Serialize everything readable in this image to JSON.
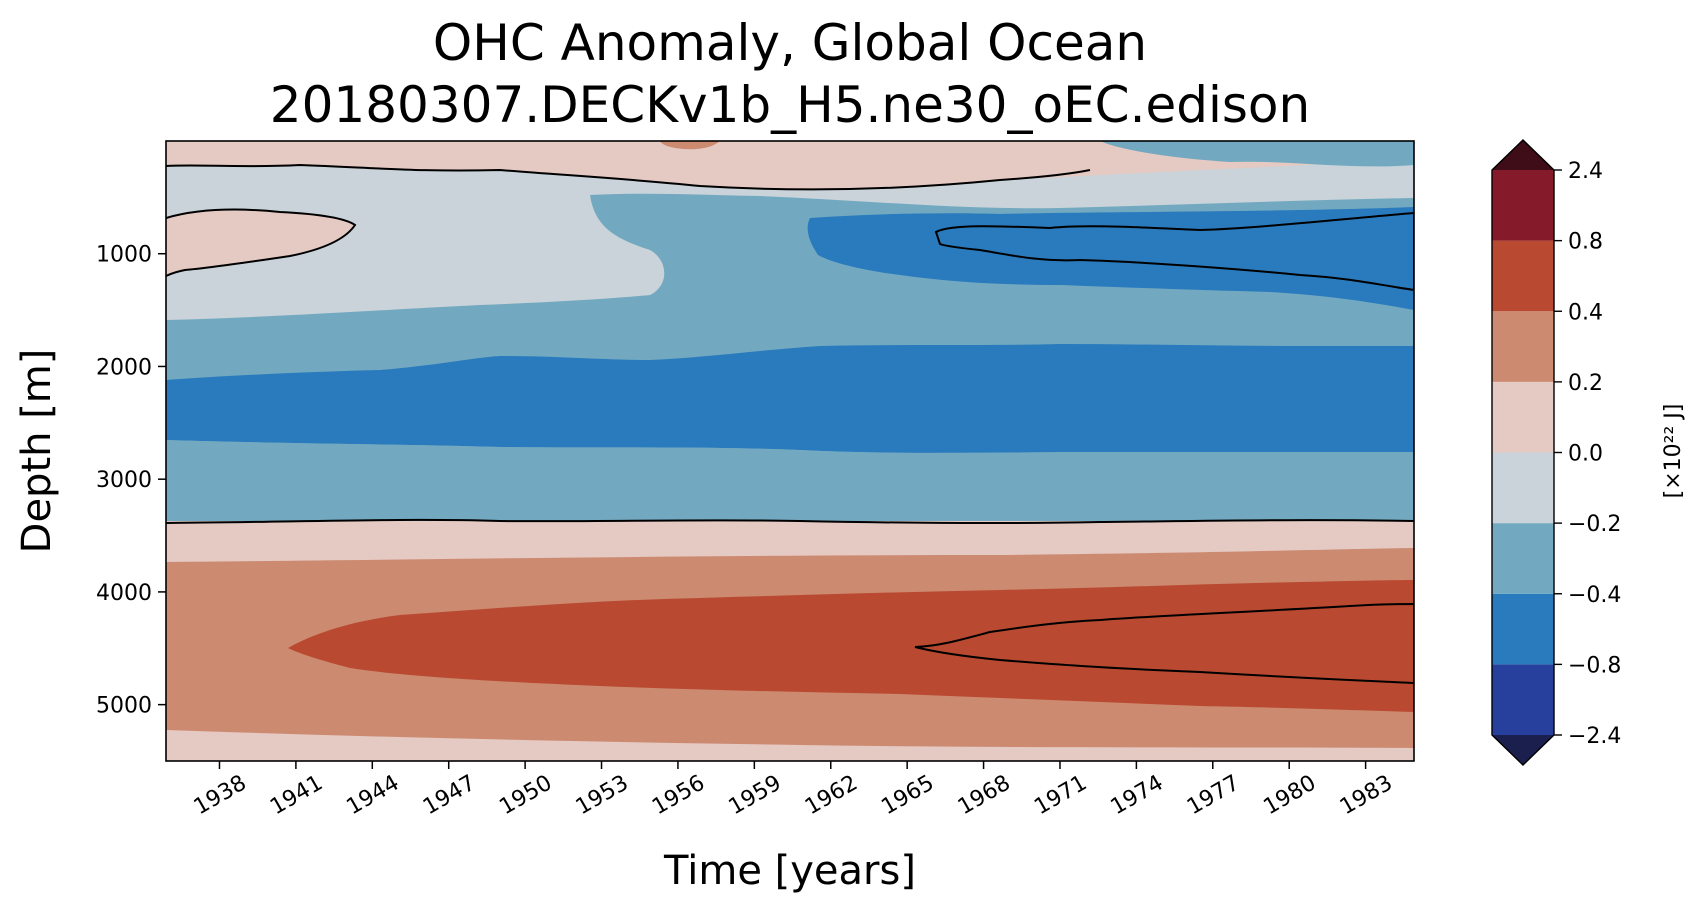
{
  "chart_data": {
    "type": "heatmap",
    "subtype": "filled-contour (Hovmoller)",
    "title": "OHC Anomaly, Global Ocean",
    "subtitle": "20180307.DECKv1b_H5.ne30_oEC.edison",
    "xlabel": "Time [years]",
    "ylabel": "Depth [m]",
    "xlim": [
      1935.9,
      1984.9
    ],
    "ylim": [
      5500,
      0
    ],
    "x_ticks": [
      1938,
      1941,
      1944,
      1947,
      1950,
      1953,
      1956,
      1959,
      1962,
      1965,
      1968,
      1971,
      1974,
      1977,
      1980,
      1983
    ],
    "x_tick_labels": [
      "1938",
      "1941",
      "1944",
      "1947",
      "1950",
      "1953",
      "1956",
      "1959",
      "1962",
      "1965",
      "1968",
      "1971",
      "1974",
      "1977",
      "1980",
      "1983"
    ],
    "y_ticks": [
      1000,
      2000,
      3000,
      4000,
      5000
    ],
    "y_tick_labels": [
      "1000",
      "2000",
      "3000",
      "4000",
      "5000"
    ],
    "colorbar": {
      "label": "[×10²² J]",
      "levels": [
        "−2.4",
        "−0.8",
        "−0.4",
        "−0.2",
        "0.0",
        "0.2",
        "0.4",
        "0.8",
        "2.4"
      ],
      "colors": [
        "#27409e",
        "#2a7bbd",
        "#73a9c0",
        "#c9d3d9",
        "#e5c9c3",
        "#cc8a71",
        "#b94a31",
        "#841a2a"
      ],
      "under_color": "#1a1f4d",
      "over_color": "#3e0d18",
      "extend": "both"
    },
    "bands": [
      {
        "level": "0.0 to 0.2",
        "description": "surface layer 0-400 m with patches"
      },
      {
        "level": "-0.2 to 0.0",
        "description": "upper ocean 0-1500 m"
      },
      {
        "level": "-0.4 to -0.2",
        "description": "1500-2100 m and 2500-3000 m"
      },
      {
        "level": "-0.8 to -0.4",
        "description": "core 2100-2700 m; 800-1300 m after 1960"
      },
      {
        "level": "0.0 to 0.2",
        "description": "3350-3700 m"
      },
      {
        "level": "0.2 to 0.4",
        "description": "3700-5200 m"
      },
      {
        "level": "0.4 to 0.8",
        "description": "core 4000-4900 m from 1940"
      }
    ],
    "contour_lines": [
      "0.0 contour near 3370 m",
      "-0.8 contour 700-1300 m (1966-1984)",
      "0.8 contour 4100-4800 m (1965-1984)"
    ]
  }
}
